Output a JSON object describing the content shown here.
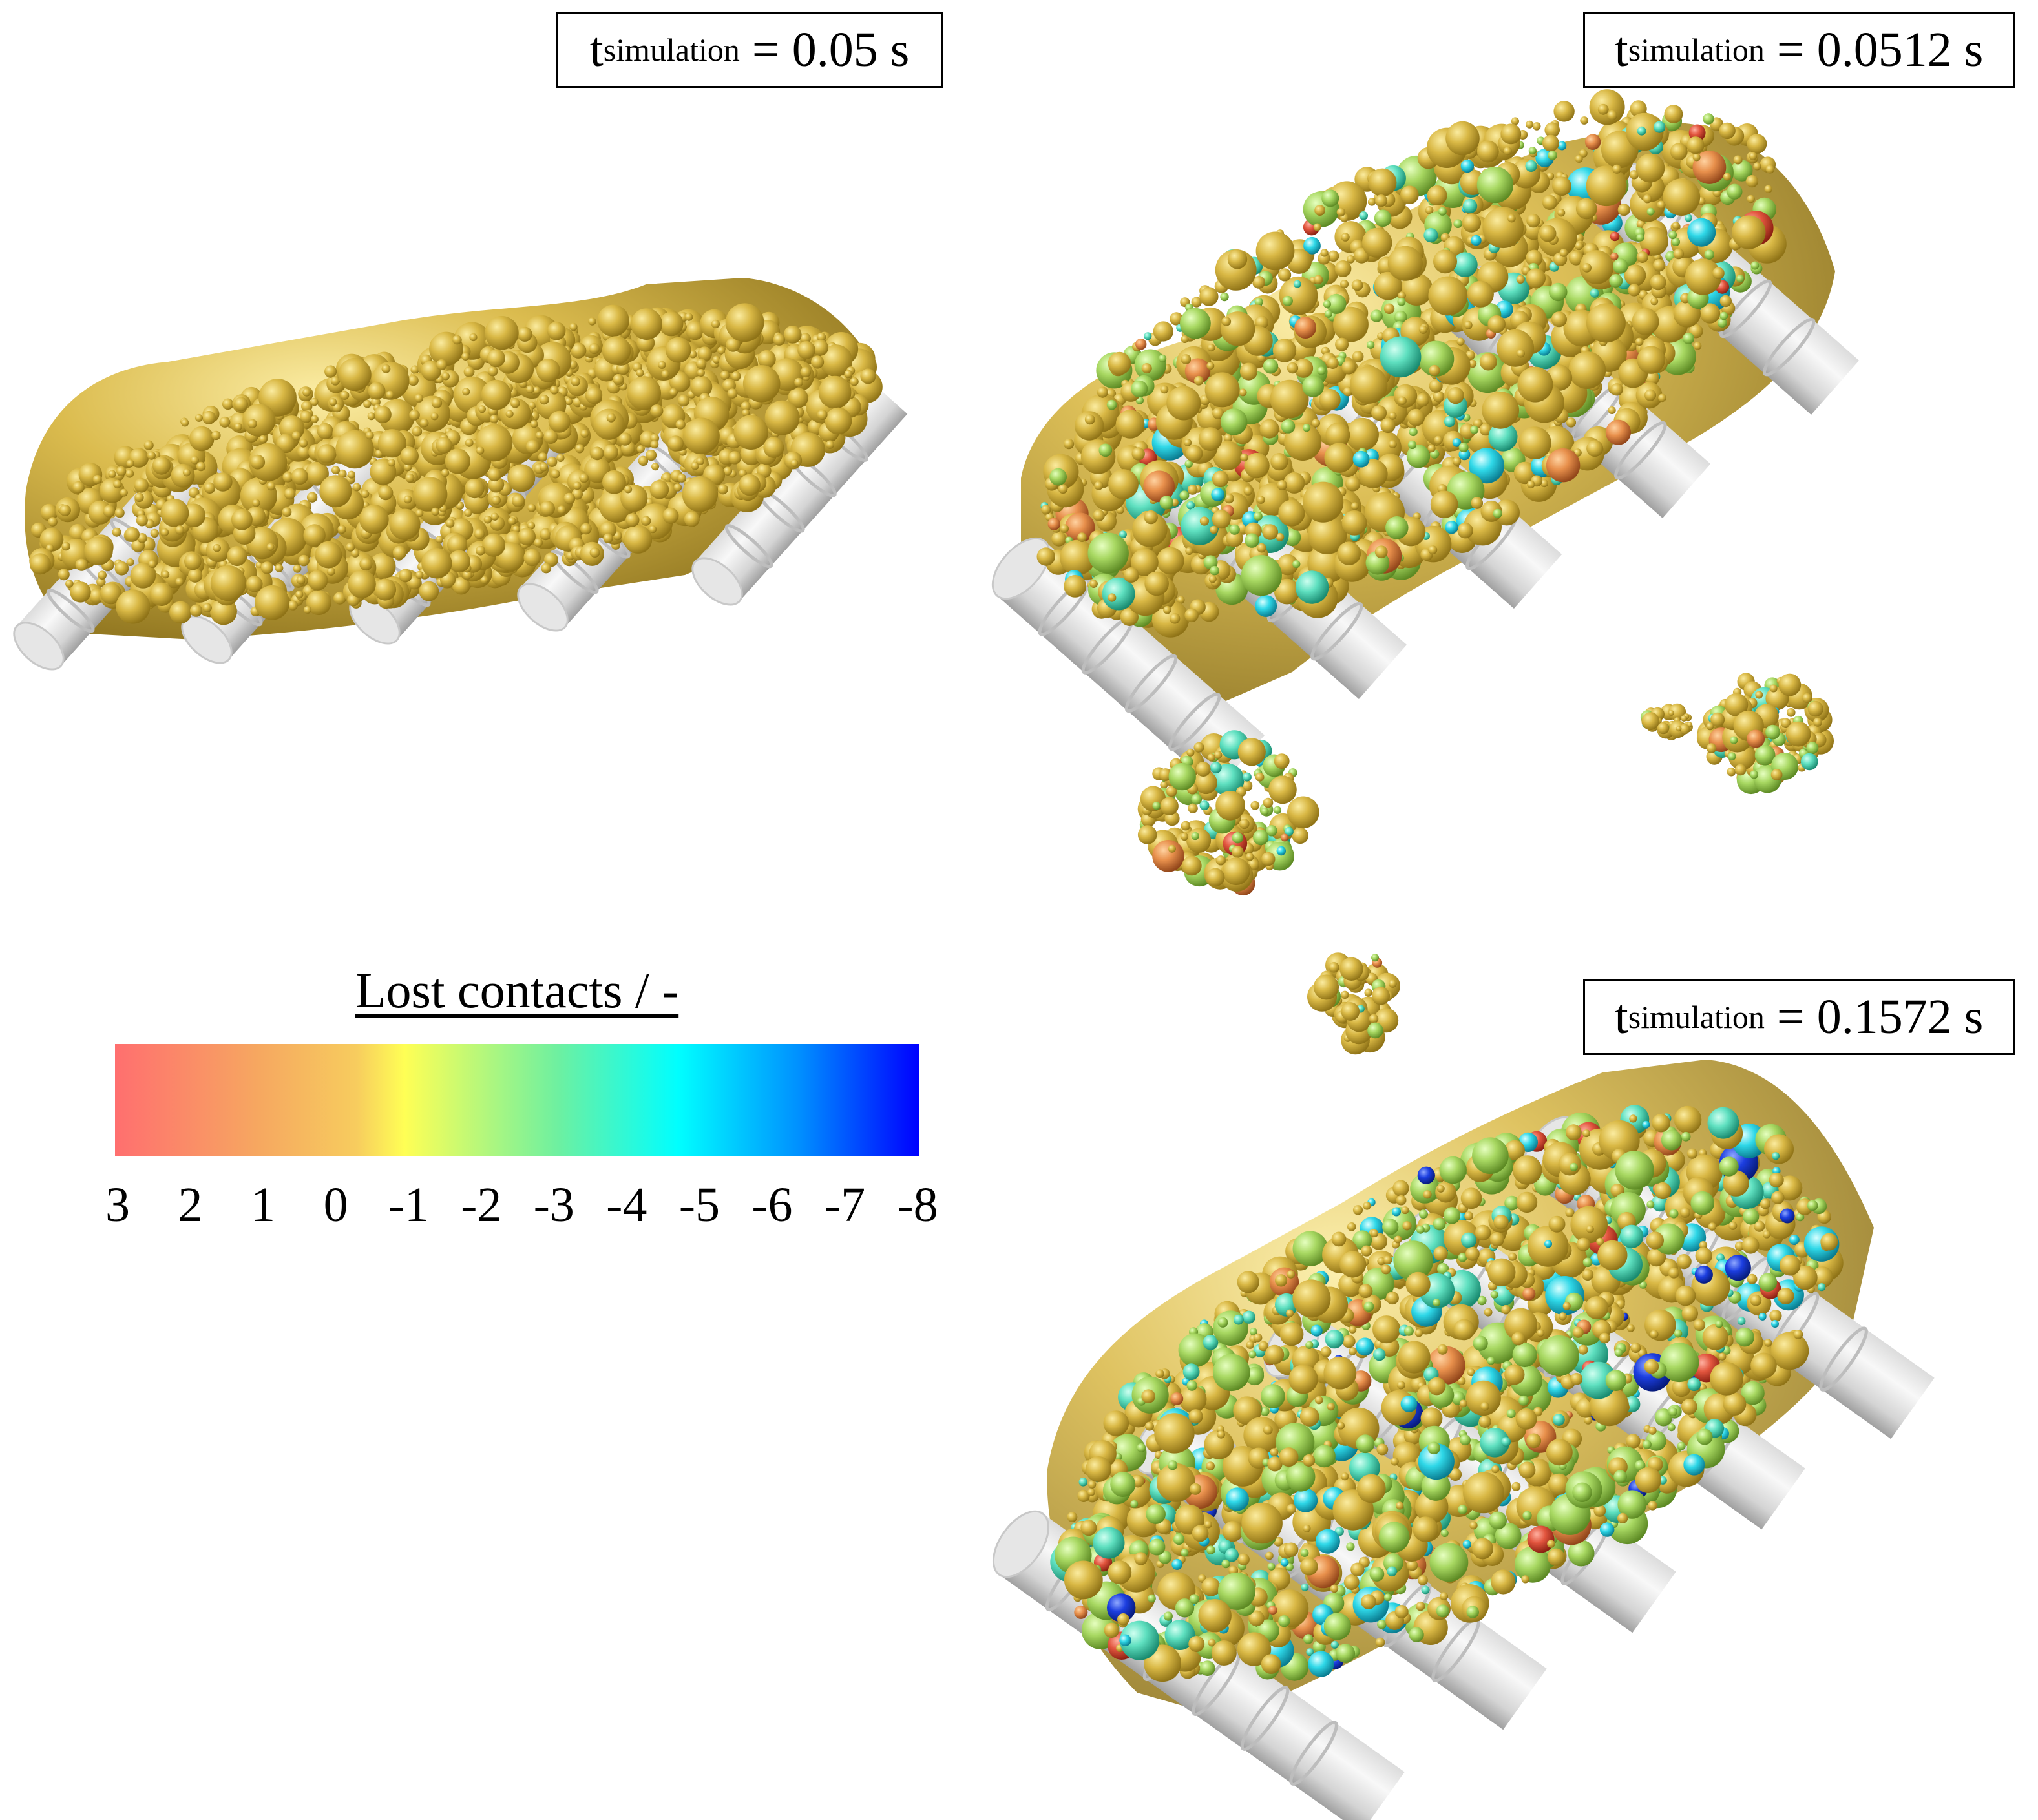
{
  "panels": [
    {
      "id": "a",
      "time_label_main": "t",
      "time_label_sub": "simulation",
      "time_label_value": " = 0.05 s"
    },
    {
      "id": "b",
      "time_label_main": "t",
      "time_label_sub": "simulation",
      "time_label_value": " = 0.0512 s"
    },
    {
      "id": "c",
      "time_label_main": "t",
      "time_label_sub": "simulation",
      "time_label_value": " = 0.1572 s"
    }
  ],
  "legend": {
    "title": "Lost contacts / -",
    "ticks": [
      "3",
      "2",
      "1",
      "0",
      "-1",
      "-2",
      "-3",
      "-4",
      "-5",
      "-6",
      "-7",
      "-8"
    ],
    "colors": [
      "#ff6f6f",
      "#f6a860",
      "#f2c35a",
      "#ffff55",
      "#7fff7f",
      "#00ffff",
      "#0000ff"
    ]
  },
  "colors": {
    "particle_base": "#d4b43c",
    "particle_highlight": "#f4dc78",
    "particle_shadow": "#9c7e1c",
    "cylinder_light": "#f4f4f4",
    "cylinder_dark": "#a8a8a8",
    "background": "#ffffff"
  }
}
